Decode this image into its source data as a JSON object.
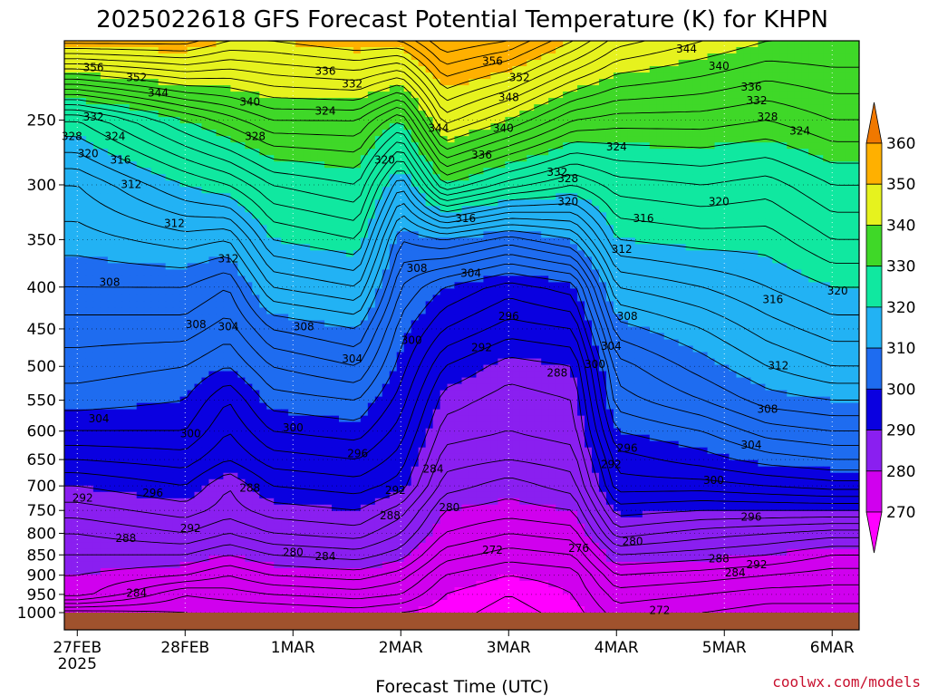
{
  "title": "2025022618 GFS Forecast Potential Temperature (K) for KHPN",
  "credit": "coolwx.com/models",
  "chart_data": {
    "type": "heatmap",
    "title": "2025022618 GFS Forecast Potential Temperature (K) for KHPN",
    "xlabel": "Forecast Time (UTC)",
    "ylabel": "",
    "x_ticks": [
      {
        "label": "27FEB",
        "sublabel": "2025",
        "day": 0
      },
      {
        "label": "28FEB",
        "day": 1
      },
      {
        "label": "1MAR",
        "day": 2
      },
      {
        "label": "2MAR",
        "day": 3
      },
      {
        "label": "3MAR",
        "day": 4
      },
      {
        "label": "4MAR",
        "day": 5
      },
      {
        "label": "5MAR",
        "day": 6
      },
      {
        "label": "6MAR",
        "day": 7
      }
    ],
    "x_range_days": [
      -0.12,
      7.25
    ],
    "y_axis": {
      "scale": "pressure",
      "range": [
        1000,
        200
      ],
      "ticks": [
        250,
        300,
        350,
        400,
        450,
        500,
        550,
        600,
        650,
        700,
        750,
        800,
        850,
        900,
        950,
        1000
      ]
    },
    "colorbar": {
      "ticks": [
        270,
        280,
        290,
        300,
        310,
        320,
        330,
        340,
        350,
        360
      ],
      "bands": [
        {
          "lo": 260,
          "hi": 270,
          "color": "#ff00ff"
        },
        {
          "lo": 270,
          "hi": 280,
          "color": "#d000ee"
        },
        {
          "lo": 280,
          "hi": 290,
          "color": "#8a1ff0"
        },
        {
          "lo": 290,
          "hi": 300,
          "color": "#0a00e0"
        },
        {
          "lo": 300,
          "hi": 310,
          "color": "#1e6cf0"
        },
        {
          "lo": 310,
          "hi": 320,
          "color": "#22b2f4"
        },
        {
          "lo": 320,
          "hi": 330,
          "color": "#10e8a0"
        },
        {
          "lo": 330,
          "hi": 340,
          "color": "#3fd828"
        },
        {
          "lo": 340,
          "hi": 350,
          "color": "#e6f21e"
        },
        {
          "lo": 350,
          "hi": 360,
          "color": "#ffb000"
        },
        {
          "lo": 360,
          "hi": 370,
          "color": "#f07800"
        }
      ]
    },
    "ground_color": "#a0522d",
    "profile_days": [
      0.0,
      1.0,
      1.4,
      1.8,
      2.6,
      3.0,
      3.4,
      4.0,
      4.6,
      5.0,
      5.8,
      6.4,
      7.0
    ],
    "profile_levels": [
      1000,
      950,
      900,
      850,
      800,
      750,
      700,
      650,
      600,
      550,
      500,
      450,
      400,
      350,
      300,
      250,
      200
    ],
    "theta_profiles": [
      [
        269,
        279,
        280,
        282,
        284,
        287,
        290,
        294,
        298,
        301,
        303,
        305,
        308,
        311,
        314,
        322,
        353
      ],
      [
        270,
        272,
        278,
        282,
        286,
        289,
        292,
        295,
        298,
        300,
        302,
        305,
        308,
        313,
        320,
        330,
        353
      ],
      [
        270,
        273,
        276,
        280,
        284,
        287,
        288,
        292,
        294,
        296,
        300,
        303,
        306,
        312,
        322,
        333,
        350
      ],
      [
        270,
        274,
        278,
        282,
        286,
        289,
        292,
        295,
        298,
        301,
        304,
        308,
        314,
        320,
        326,
        336,
        350
      ],
      [
        271,
        275,
        279,
        283,
        287,
        290,
        293,
        296,
        299,
        302,
        306,
        310,
        316,
        322,
        328,
        336,
        352
      ],
      [
        270,
        274,
        277,
        281,
        284,
        287,
        291,
        293,
        295,
        297,
        299,
        301,
        304,
        308,
        316,
        330,
        352
      ],
      [
        269,
        270,
        272,
        275,
        278,
        280,
        283,
        285,
        287,
        289,
        292,
        296,
        300,
        310,
        330,
        345,
        358
      ],
      [
        267,
        268,
        270,
        273,
        276,
        279,
        281,
        284,
        286,
        287,
        289,
        293,
        297,
        307,
        325,
        340,
        356
      ],
      [
        269,
        270,
        271,
        274,
        277,
        280,
        283,
        285,
        287,
        288,
        290,
        294,
        299,
        310,
        322,
        334,
        350
      ],
      [
        273,
        275,
        278,
        282,
        287,
        291,
        295,
        297,
        300,
        303,
        305,
        309,
        314,
        320,
        325,
        333,
        345
      ],
      [
        272,
        274,
        277,
        281,
        285,
        290,
        295,
        299,
        302,
        306,
        309,
        312,
        316,
        321,
        326,
        333,
        342
      ],
      [
        271,
        273,
        276,
        280,
        284,
        290,
        296,
        301,
        305,
        309,
        312,
        315,
        318,
        321,
        325,
        332,
        340
      ],
      [
        271,
        273,
        275,
        278,
        283,
        290,
        297,
        302,
        306,
        310,
        314,
        317,
        320,
        324,
        328,
        334,
        340
      ]
    ],
    "contour_labels": [
      {
        "t": "356",
        "day": 0.15,
        "p": 216
      },
      {
        "t": "352",
        "day": 0.55,
        "p": 222
      },
      {
        "t": "344",
        "day": 0.75,
        "p": 232
      },
      {
        "t": "332",
        "day": 0.15,
        "p": 248
      },
      {
        "t": "328",
        "day": -0.05,
        "p": 262
      },
      {
        "t": "324",
        "day": 0.35,
        "p": 262
      },
      {
        "t": "320",
        "day": 0.1,
        "p": 275
      },
      {
        "t": "316",
        "day": 0.4,
        "p": 280
      },
      {
        "t": "312",
        "day": 0.5,
        "p": 300
      },
      {
        "t": "312",
        "day": 0.9,
        "p": 335
      },
      {
        "t": "312",
        "day": 1.4,
        "p": 370
      },
      {
        "t": "308",
        "day": 0.3,
        "p": 395
      },
      {
        "t": "308",
        "day": 1.1,
        "p": 445
      },
      {
        "t": "304",
        "day": 1.4,
        "p": 448
      },
      {
        "t": "308",
        "day": 2.1,
        "p": 448
      },
      {
        "t": "304",
        "day": 2.55,
        "p": 490
      },
      {
        "t": "304",
        "day": 0.2,
        "p": 580
      },
      {
        "t": "300",
        "day": 1.05,
        "p": 605
      },
      {
        "t": "300",
        "day": 2.0,
        "p": 595
      },
      {
        "t": "296",
        "day": 0.7,
        "p": 715
      },
      {
        "t": "296",
        "day": 2.6,
        "p": 640
      },
      {
        "t": "292",
        "day": 0.05,
        "p": 725
      },
      {
        "t": "288",
        "day": 1.6,
        "p": 705
      },
      {
        "t": "292",
        "day": 2.95,
        "p": 710
      },
      {
        "t": "292",
        "day": 1.05,
        "p": 790
      },
      {
        "t": "288",
        "day": 0.45,
        "p": 812
      },
      {
        "t": "288",
        "day": 2.9,
        "p": 762
      },
      {
        "t": "280",
        "day": 2.0,
        "p": 845
      },
      {
        "t": "284",
        "day": 2.3,
        "p": 855
      },
      {
        "t": "284",
        "day": 0.55,
        "p": 948
      },
      {
        "t": "300",
        "day": 3.1,
        "p": 465
      },
      {
        "t": "308",
        "day": 3.15,
        "p": 380
      },
      {
        "t": "304",
        "day": 3.65,
        "p": 385
      },
      {
        "t": "296",
        "day": 4.0,
        "p": 435
      },
      {
        "t": "292",
        "day": 3.75,
        "p": 475
      },
      {
        "t": "288",
        "day": 4.45,
        "p": 510
      },
      {
        "t": "284",
        "day": 3.3,
        "p": 668
      },
      {
        "t": "280",
        "day": 3.45,
        "p": 745
      },
      {
        "t": "272",
        "day": 3.85,
        "p": 840
      },
      {
        "t": "276",
        "day": 4.65,
        "p": 835
      },
      {
        "t": "280",
        "day": 5.15,
        "p": 820
      },
      {
        "t": "284",
        "day": 6.1,
        "p": 895
      },
      {
        "t": "288",
        "day": 5.95,
        "p": 860
      },
      {
        "t": "292",
        "day": 6.3,
        "p": 875
      },
      {
        "t": "296",
        "day": 6.25,
        "p": 765
      },
      {
        "t": "300",
        "day": 5.9,
        "p": 690
      },
      {
        "t": "304",
        "day": 6.25,
        "p": 625
      },
      {
        "t": "308",
        "day": 6.4,
        "p": 565
      },
      {
        "t": "312",
        "day": 6.5,
        "p": 500
      },
      {
        "t": "316",
        "day": 6.45,
        "p": 415
      },
      {
        "t": "320",
        "day": 7.05,
        "p": 405
      },
      {
        "t": "320",
        "day": 5.95,
        "p": 315
      },
      {
        "t": "316",
        "day": 5.25,
        "p": 330
      },
      {
        "t": "312",
        "day": 5.05,
        "p": 360
      },
      {
        "t": "308",
        "day": 5.1,
        "p": 435
      },
      {
        "t": "304",
        "day": 4.95,
        "p": 473
      },
      {
        "t": "300",
        "day": 4.8,
        "p": 498
      },
      {
        "t": "296",
        "day": 5.1,
        "p": 630
      },
      {
        "t": "292",
        "day": 4.95,
        "p": 660
      },
      {
        "t": "272",
        "day": 5.4,
        "p": 995
      },
      {
        "t": "324",
        "day": 5.0,
        "p": 270
      },
      {
        "t": "320",
        "day": 4.55,
        "p": 315
      },
      {
        "t": "328",
        "day": 4.55,
        "p": 295
      },
      {
        "t": "332",
        "day": 4.45,
        "p": 290
      },
      {
        "t": "336",
        "day": 3.75,
        "p": 276
      },
      {
        "t": "340",
        "day": 3.95,
        "p": 256
      },
      {
        "t": "344",
        "day": 3.35,
        "p": 256
      },
      {
        "t": "348",
        "day": 4.0,
        "p": 235
      },
      {
        "t": "352",
        "day": 4.1,
        "p": 222
      },
      {
        "t": "356",
        "day": 3.85,
        "p": 212
      },
      {
        "t": "336",
        "day": 2.3,
        "p": 218
      },
      {
        "t": "332",
        "day": 2.55,
        "p": 226
      },
      {
        "t": "324",
        "day": 2.3,
        "p": 244
      },
      {
        "t": "320",
        "day": 2.85,
        "p": 280
      },
      {
        "t": "328",
        "day": 1.65,
        "p": 262
      },
      {
        "t": "340",
        "day": 1.6,
        "p": 238
      },
      {
        "t": "344",
        "day": 5.65,
        "p": 205
      },
      {
        "t": "340",
        "day": 5.95,
        "p": 215
      },
      {
        "t": "336",
        "day": 6.25,
        "p": 228
      },
      {
        "t": "332",
        "day": 6.3,
        "p": 237
      },
      {
        "t": "328",
        "day": 6.4,
        "p": 248
      },
      {
        "t": "324",
        "day": 6.7,
        "p": 258
      },
      {
        "t": "316",
        "day": 3.6,
        "p": 330
      }
    ]
  }
}
